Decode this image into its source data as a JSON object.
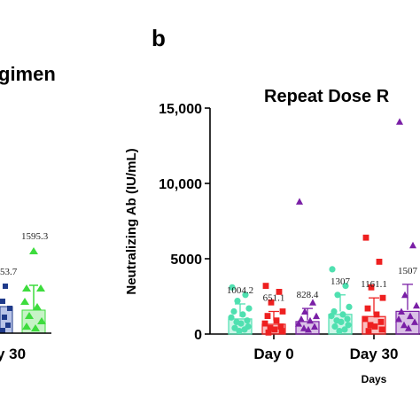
{
  "panel_letter": "b",
  "left_panel": {
    "title_fragment": "gimen",
    "category_fragment": "y 30",
    "data_labels": [
      "53.7",
      "1595.3"
    ]
  },
  "colors": {
    "cyan": "#4fe0b0",
    "red": "#ee2020",
    "purple": "#7a1fa6",
    "navy": "#1f3a8a",
    "green": "#3ddc3d"
  },
  "chart_data": {
    "type": "bar",
    "title": "Repeat Dose R",
    "ylabel": "Neutralizing Ab (IU/mL)",
    "xlabel": "Days",
    "categories": [
      "Day 0",
      "Day 30"
    ],
    "ylim": [
      0,
      15000
    ],
    "yticks": [
      "0",
      "5000",
      "10,000",
      "15,000"
    ],
    "ytick_values": [
      0,
      5000,
      10000,
      15000
    ],
    "series": [
      {
        "color": "#4fe0b0",
        "marker": "circle",
        "values": [
          1004.2,
          1307
        ],
        "labels": [
          "1004.2",
          "1307"
        ],
        "errors": [
          [
            1150,
            2000
          ],
          [
            1500,
            2600
          ]
        ]
      },
      {
        "color": "#ee2020",
        "marker": "square",
        "values": [
          651.1,
          1161.1
        ],
        "labels": [
          "651.1",
          "1161.1"
        ],
        "errors": [
          [
            900,
            1500
          ],
          [
            1300,
            2400
          ]
        ]
      },
      {
        "color": "#7a1fa6",
        "marker": "triangle",
        "values": [
          828.4,
          1507
        ],
        "labels": [
          "828.4",
          "1507"
        ],
        "errors": [
          [
            900,
            1700
          ],
          [
            1600,
            3300
          ]
        ]
      }
    ],
    "points": [
      [
        [
          3100,
          2600,
          2200,
          1700,
          1500,
          1300,
          1100,
          900,
          800,
          700,
          500,
          400,
          300,
          200
        ],
        [
          4300,
          3200,
          2600,
          1800,
          1500,
          1300,
          1200,
          1000,
          900,
          800,
          600,
          500,
          300,
          200
        ]
      ],
      [
        [
          3200,
          2800,
          2100,
          1500,
          1200,
          900,
          700,
          500,
          400,
          300,
          200,
          100
        ],
        [
          6400,
          4800,
          3100,
          2400,
          1700,
          1300,
          1000,
          800,
          600,
          500,
          300,
          200
        ]
      ],
      [
        [
          8800,
          2100,
          1500,
          1200,
          1000,
          900,
          700,
          500,
          400,
          300
        ],
        [
          14100,
          5900,
          2600,
          1900,
          1500,
          1200,
          1000,
          800,
          600,
          400
        ]
      ]
    ]
  }
}
